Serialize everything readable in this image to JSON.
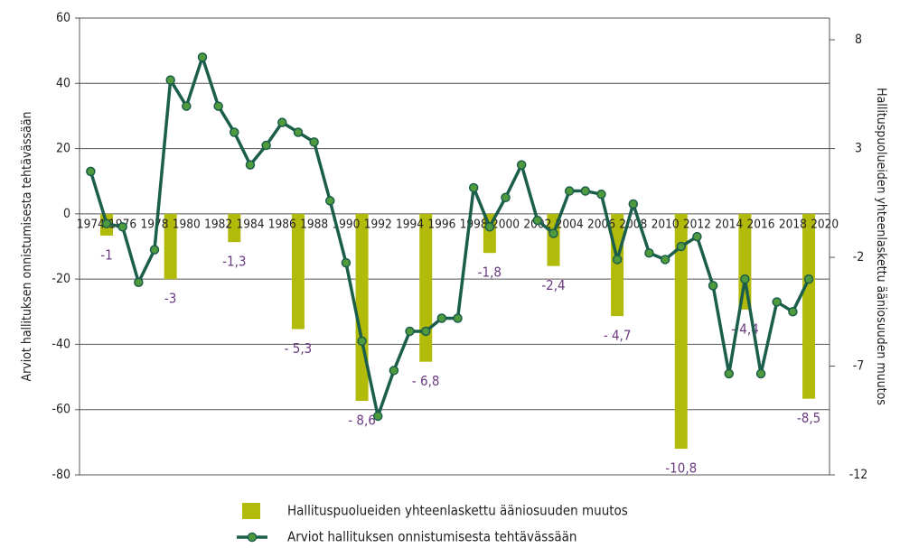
{
  "chart_data": {
    "type": "combo",
    "y_label": "Arviot hallituksen onnistumisesta tehtävässään",
    "y2_label": "Hallituspuolueiden yhteenlaskettu ääniosuuden muutos",
    "xlim": [
      1973.3,
      2020.3
    ],
    "xticks": [
      1974,
      1976,
      1978,
      1980,
      1982,
      1984,
      1986,
      1988,
      1990,
      1992,
      1994,
      1996,
      1998,
      2000,
      2002,
      2004,
      2006,
      2008,
      2010,
      2012,
      2014,
      2016,
      2018,
      2020
    ],
    "ylim": [
      -80,
      60
    ],
    "yticks": [
      -80,
      -60,
      -40,
      -20,
      0,
      20,
      40,
      60
    ],
    "y2lim": [
      -12,
      9
    ],
    "y2ticks": [
      -12,
      -7,
      -2,
      3,
      8
    ],
    "grid": true,
    "legend": "bottom",
    "series": [
      {
        "name": "Hallituspuolueiden yhteenlaskettu ääniosuuden muutos",
        "type": "bar",
        "axis": "y2",
        "color": "#b3bb0a",
        "x": [
          1975,
          1979,
          1983,
          1987,
          1991,
          1995,
          1999,
          2003,
          2007,
          2011,
          2015,
          2019
        ],
        "values": [
          -1,
          -3,
          -1.3,
          -5.3,
          -8.6,
          -6.8,
          -1.8,
          -2.4,
          -4.7,
          -10.8,
          -4.4,
          -8.5
        ],
        "value_labels": [
          "-1",
          "-3",
          "-1,3",
          "- 5,3",
          "- 8,6",
          "- 6,8",
          "-1,8",
          "-2,4",
          "- 4,7",
          "-10,8",
          "- 4,4",
          "-8,5"
        ]
      },
      {
        "name": "Arviot hallituksen onnistumisesta tehtävässään",
        "type": "line",
        "color": "#1b5e4b",
        "x": [
          1974,
          1975,
          1976,
          1977,
          1978,
          1979,
          1980,
          1981,
          1982,
          1983,
          1984,
          1985,
          1986,
          1987,
          1988,
          1989,
          1990,
          1991,
          1992,
          1993,
          1994,
          1995,
          1996,
          1997,
          1998,
          1999,
          2000,
          2001,
          2002,
          2003,
          2004,
          2005,
          2006,
          2007,
          2008,
          2009,
          2010,
          2011,
          2012,
          2013,
          2014,
          2015,
          2016,
          2017,
          2018,
          2019
        ],
        "values": [
          13,
          -3,
          -4,
          -21,
          -11,
          41,
          33,
          48,
          33,
          25,
          15,
          21,
          28,
          25,
          22,
          4,
          -15,
          -39,
          -62,
          -48,
          -36,
          -36,
          -32,
          -32,
          8,
          -4,
          5,
          15,
          -2,
          -6,
          7,
          7,
          6,
          -14,
          3,
          -12,
          -14,
          -10,
          -7,
          -22,
          -49,
          -20,
          -49,
          -27,
          -30,
          -20
        ]
      }
    ]
  }
}
